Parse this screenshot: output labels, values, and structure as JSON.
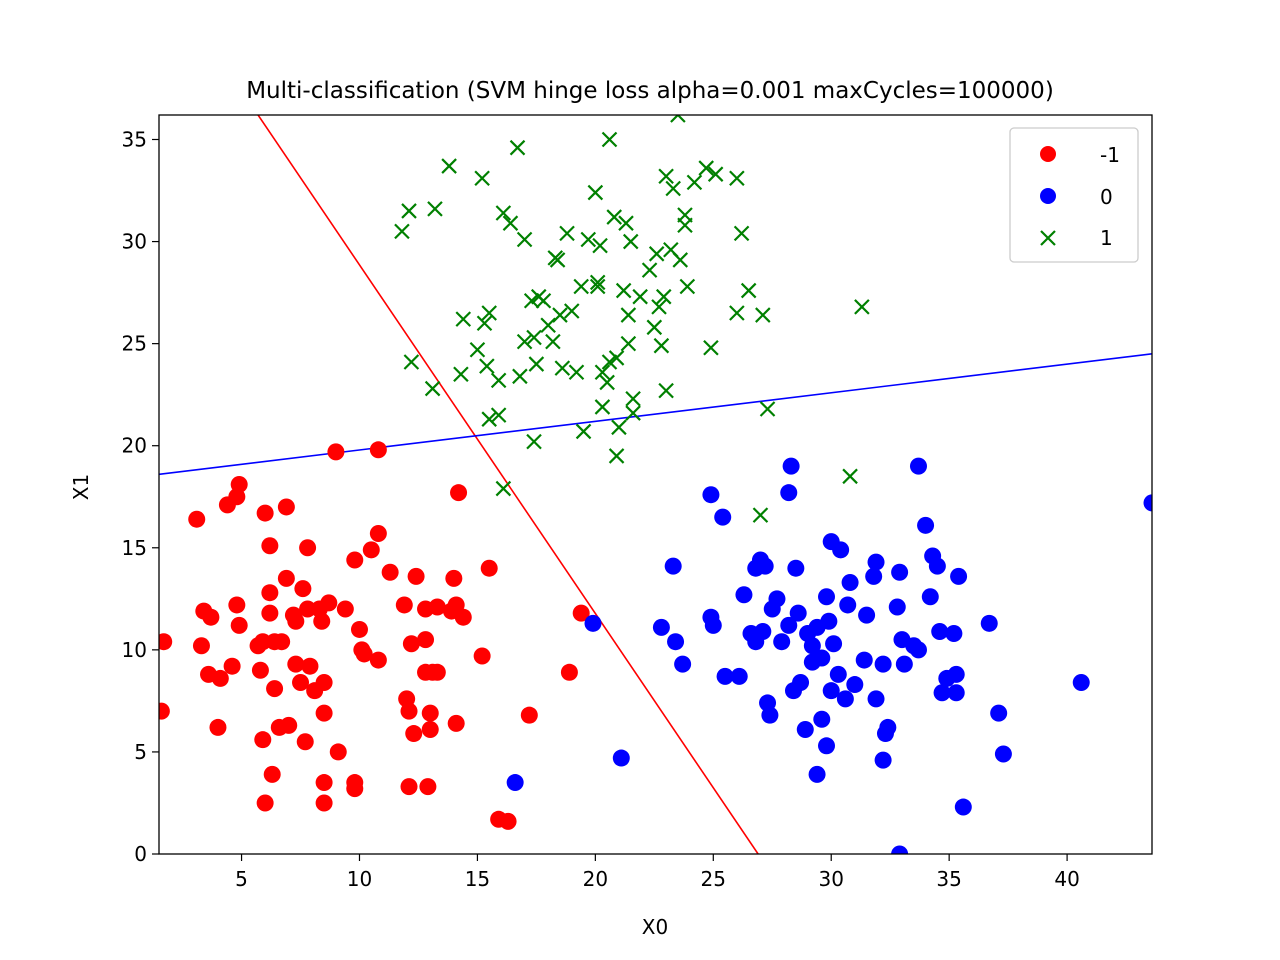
{
  "chart_data": {
    "type": "scatter",
    "title": "Multi-classification (SVM hinge loss alpha=0.001 maxCycles=100000)",
    "xlabel": "X0",
    "ylabel": "X1",
    "xlim": [
      1.5,
      43.6
    ],
    "ylim": [
      0,
      36.2
    ],
    "xticks": [
      5,
      10,
      15,
      20,
      25,
      30,
      35,
      40
    ],
    "yticks": [
      0,
      5,
      10,
      15,
      20,
      25,
      30,
      35
    ],
    "grid": false,
    "legend_position": "top-right",
    "series": [
      {
        "name": "-1",
        "marker": "circle",
        "color": "#ff0000",
        "points": [
          [
            1.7,
            10.4
          ],
          [
            1.6,
            7.0
          ],
          [
            3.1,
            16.4
          ],
          [
            3.3,
            10.2
          ],
          [
            3.4,
            11.9
          ],
          [
            3.6,
            8.8
          ],
          [
            3.7,
            11.6
          ],
          [
            4.0,
            6.2
          ],
          [
            4.1,
            8.6
          ],
          [
            4.4,
            17.1
          ],
          [
            4.6,
            9.2
          ],
          [
            4.8,
            17.5
          ],
          [
            4.8,
            12.2
          ],
          [
            4.9,
            18.1
          ],
          [
            4.9,
            11.2
          ],
          [
            5.7,
            10.2
          ],
          [
            5.8,
            9.0
          ],
          [
            5.9,
            10.4
          ],
          [
            5.9,
            5.6
          ],
          [
            6.0,
            2.5
          ],
          [
            6.0,
            16.7
          ],
          [
            6.2,
            15.1
          ],
          [
            6.2,
            12.8
          ],
          [
            6.2,
            11.8
          ],
          [
            6.3,
            3.9
          ],
          [
            6.4,
            8.1
          ],
          [
            6.4,
            10.4
          ],
          [
            6.6,
            6.2
          ],
          [
            6.7,
            10.4
          ],
          [
            6.9,
            17.0
          ],
          [
            6.9,
            13.5
          ],
          [
            7.0,
            6.3
          ],
          [
            7.2,
            11.7
          ],
          [
            7.3,
            11.4
          ],
          [
            7.3,
            9.3
          ],
          [
            7.6,
            13.0
          ],
          [
            7.5,
            8.4
          ],
          [
            7.7,
            5.5
          ],
          [
            7.8,
            15.0
          ],
          [
            7.8,
            12.0
          ],
          [
            7.9,
            9.2
          ],
          [
            8.1,
            8.0
          ],
          [
            8.3,
            12.0
          ],
          [
            8.4,
            11.4
          ],
          [
            8.5,
            6.9
          ],
          [
            8.5,
            8.4
          ],
          [
            8.5,
            3.5
          ],
          [
            8.5,
            2.5
          ],
          [
            8.7,
            12.3
          ],
          [
            9.1,
            5.0
          ],
          [
            9.4,
            12.0
          ],
          [
            9.8,
            14.4
          ],
          [
            9.8,
            3.5
          ],
          [
            10.0,
            11.0
          ],
          [
            10.1,
            10.0
          ],
          [
            10.2,
            9.8
          ],
          [
            10.5,
            14.9
          ],
          [
            10.8,
            15.7
          ],
          [
            10.8,
            9.5
          ],
          [
            11.3,
            13.8
          ],
          [
            11.9,
            12.2
          ],
          [
            12.0,
            7.6
          ],
          [
            12.1,
            7.0
          ],
          [
            12.1,
            3.3
          ],
          [
            12.2,
            10.3
          ],
          [
            12.3,
            5.9
          ],
          [
            12.4,
            13.6
          ],
          [
            12.8,
            12.0
          ],
          [
            12.8,
            10.5
          ],
          [
            12.8,
            8.9
          ],
          [
            12.9,
            3.3
          ],
          [
            13.0,
            6.1
          ],
          [
            13.0,
            6.9
          ],
          [
            13.1,
            8.9
          ],
          [
            13.3,
            12.1
          ],
          [
            13.3,
            8.9
          ],
          [
            14.0,
            13.5
          ],
          [
            13.9,
            11.9
          ],
          [
            14.1,
            12.2
          ],
          [
            14.1,
            6.4
          ],
          [
            14.4,
            11.6
          ],
          [
            14.2,
            17.7
          ],
          [
            15.2,
            9.7
          ],
          [
            15.5,
            14.0
          ],
          [
            15.9,
            1.7
          ],
          [
            16.3,
            1.6
          ],
          [
            17.2,
            6.8
          ],
          [
            18.9,
            8.9
          ],
          [
            19.4,
            11.8
          ],
          [
            10.8,
            19.8
          ],
          [
            9.0,
            19.7
          ],
          [
            9.8,
            3.2
          ]
        ]
      },
      {
        "name": "0",
        "marker": "circle",
        "color": "#0000ff",
        "points": [
          [
            16.6,
            3.5
          ],
          [
            19.9,
            11.3
          ],
          [
            21.1,
            4.7
          ],
          [
            22.8,
            11.1
          ],
          [
            23.3,
            14.1
          ],
          [
            23.4,
            10.4
          ],
          [
            23.7,
            9.3
          ],
          [
            24.9,
            17.6
          ],
          [
            24.9,
            11.6
          ],
          [
            25.0,
            11.2
          ],
          [
            25.4,
            16.5
          ],
          [
            25.5,
            8.7
          ],
          [
            26.1,
            8.7
          ],
          [
            26.3,
            12.7
          ],
          [
            26.6,
            10.8
          ],
          [
            26.8,
            14.0
          ],
          [
            26.8,
            10.4
          ],
          [
            27.0,
            14.4
          ],
          [
            27.1,
            10.9
          ],
          [
            27.2,
            14.1
          ],
          [
            27.3,
            7.4
          ],
          [
            27.4,
            6.8
          ],
          [
            27.5,
            12.0
          ],
          [
            27.7,
            12.5
          ],
          [
            27.9,
            10.4
          ],
          [
            28.2,
            17.7
          ],
          [
            28.3,
            19.0
          ],
          [
            28.2,
            11.2
          ],
          [
            28.4,
            8.0
          ],
          [
            28.5,
            14.0
          ],
          [
            28.7,
            8.4
          ],
          [
            28.9,
            6.1
          ],
          [
            29.0,
            10.8
          ],
          [
            29.2,
            9.4
          ],
          [
            29.4,
            11.1
          ],
          [
            29.4,
            3.9
          ],
          [
            29.6,
            9.6
          ],
          [
            29.6,
            6.6
          ],
          [
            29.8,
            12.6
          ],
          [
            29.9,
            11.4
          ],
          [
            30.0,
            8.0
          ],
          [
            30.0,
            15.3
          ],
          [
            30.1,
            10.3
          ],
          [
            30.4,
            14.9
          ],
          [
            30.6,
            7.6
          ],
          [
            30.7,
            12.2
          ],
          [
            30.8,
            13.3
          ],
          [
            31.0,
            8.3
          ],
          [
            31.4,
            9.5
          ],
          [
            31.5,
            11.7
          ],
          [
            31.8,
            13.6
          ],
          [
            31.9,
            14.3
          ],
          [
            31.9,
            7.6
          ],
          [
            32.2,
            4.6
          ],
          [
            32.2,
            9.3
          ],
          [
            32.4,
            6.2
          ],
          [
            32.3,
            5.9
          ],
          [
            32.8,
            12.1
          ],
          [
            32.9,
            13.8
          ],
          [
            33.0,
            10.5
          ],
          [
            33.1,
            9.3
          ],
          [
            33.5,
            10.2
          ],
          [
            33.7,
            19.0
          ],
          [
            33.7,
            10.0
          ],
          [
            34.0,
            16.1
          ],
          [
            34.2,
            12.6
          ],
          [
            34.3,
            14.6
          ],
          [
            34.5,
            14.1
          ],
          [
            34.6,
            10.9
          ],
          [
            34.7,
            7.9
          ],
          [
            34.9,
            8.6
          ],
          [
            35.2,
            10.8
          ],
          [
            35.3,
            8.8
          ],
          [
            35.3,
            7.9
          ],
          [
            35.4,
            13.6
          ],
          [
            35.6,
            2.3
          ],
          [
            36.7,
            11.3
          ],
          [
            37.1,
            6.9
          ],
          [
            37.3,
            4.9
          ],
          [
            40.6,
            8.4
          ],
          [
            43.6,
            17.2
          ],
          [
            32.9,
            0.0
          ],
          [
            29.8,
            5.3
          ],
          [
            30.3,
            8.8
          ],
          [
            29.2,
            10.2
          ],
          [
            28.6,
            11.8
          ]
        ]
      },
      {
        "name": "1",
        "marker": "x",
        "color": "#008000",
        "points": [
          [
            11.8,
            30.5
          ],
          [
            12.1,
            31.5
          ],
          [
            12.2,
            24.1
          ],
          [
            13.1,
            22.8
          ],
          [
            13.2,
            31.6
          ],
          [
            13.8,
            33.7
          ],
          [
            14.3,
            23.5
          ],
          [
            14.4,
            26.2
          ],
          [
            15.0,
            24.7
          ],
          [
            15.2,
            33.1
          ],
          [
            15.3,
            26.0
          ],
          [
            15.4,
            23.9
          ],
          [
            15.5,
            26.5
          ],
          [
            15.5,
            21.3
          ],
          [
            15.9,
            23.2
          ],
          [
            16.1,
            17.9
          ],
          [
            16.1,
            31.4
          ],
          [
            16.4,
            30.9
          ],
          [
            16.7,
            34.6
          ],
          [
            16.8,
            23.4
          ],
          [
            17.0,
            30.1
          ],
          [
            17.0,
            25.1
          ],
          [
            17.3,
            27.1
          ],
          [
            17.4,
            25.3
          ],
          [
            17.5,
            24.0
          ],
          [
            17.6,
            27.3
          ],
          [
            17.8,
            27.1
          ],
          [
            18.0,
            25.9
          ],
          [
            18.2,
            25.1
          ],
          [
            18.3,
            29.2
          ],
          [
            18.4,
            29.1
          ],
          [
            18.5,
            26.4
          ],
          [
            18.6,
            23.8
          ],
          [
            18.8,
            30.4
          ],
          [
            19.0,
            26.6
          ],
          [
            19.2,
            23.6
          ],
          [
            19.4,
            27.8
          ],
          [
            19.5,
            20.7
          ],
          [
            19.7,
            30.1
          ],
          [
            20.0,
            32.4
          ],
          [
            20.1,
            28.0
          ],
          [
            20.1,
            27.8
          ],
          [
            20.2,
            29.8
          ],
          [
            20.3,
            23.6
          ],
          [
            20.3,
            21.9
          ],
          [
            20.5,
            23.1
          ],
          [
            20.6,
            24.1
          ],
          [
            20.6,
            35.0
          ],
          [
            20.8,
            31.2
          ],
          [
            20.9,
            24.3
          ],
          [
            20.9,
            19.5
          ],
          [
            21.0,
            20.9
          ],
          [
            21.2,
            27.6
          ],
          [
            21.3,
            30.9
          ],
          [
            21.4,
            26.4
          ],
          [
            21.4,
            25.0
          ],
          [
            21.5,
            30.0
          ],
          [
            21.6,
            22.3
          ],
          [
            21.6,
            21.6
          ],
          [
            21.9,
            27.3
          ],
          [
            22.3,
            28.6
          ],
          [
            22.5,
            25.8
          ],
          [
            22.6,
            29.4
          ],
          [
            22.7,
            26.8
          ],
          [
            22.8,
            24.9
          ],
          [
            22.9,
            27.3
          ],
          [
            23.0,
            33.2
          ],
          [
            23.0,
            22.7
          ],
          [
            23.2,
            29.6
          ],
          [
            23.3,
            32.6
          ],
          [
            23.5,
            36.2
          ],
          [
            23.6,
            29.1
          ],
          [
            23.8,
            31.3
          ],
          [
            23.8,
            30.8
          ],
          [
            23.9,
            27.8
          ],
          [
            24.2,
            32.9
          ],
          [
            24.7,
            33.6
          ],
          [
            24.9,
            24.8
          ],
          [
            25.1,
            33.3
          ],
          [
            26.0,
            33.1
          ],
          [
            26.2,
            30.4
          ],
          [
            26.5,
            27.6
          ],
          [
            26.0,
            26.5
          ],
          [
            27.1,
            26.4
          ],
          [
            27.3,
            21.8
          ],
          [
            27.0,
            16.6
          ],
          [
            30.8,
            18.5
          ],
          [
            31.3,
            26.8
          ],
          [
            17.4,
            20.2
          ],
          [
            15.9,
            21.5
          ]
        ]
      }
    ],
    "lines": [
      {
        "name": "-1",
        "color": "#ff0000",
        "x": [
          5.7,
          26.9
        ],
        "y": [
          36.2,
          0.0
        ]
      },
      {
        "name": "0",
        "color": "#0000ff",
        "x": [
          1.5,
          43.6
        ],
        "y": [
          18.6,
          24.5
        ]
      }
    ]
  }
}
